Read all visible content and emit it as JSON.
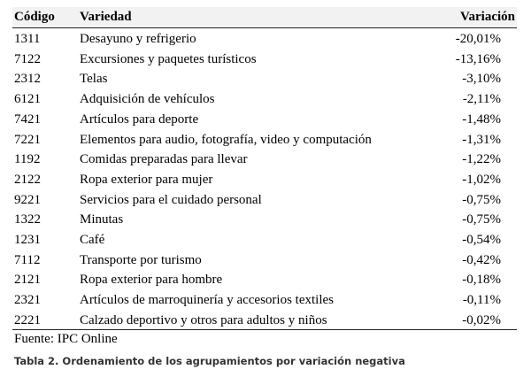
{
  "table": {
    "header": [
      "Código",
      "Variedad",
      "Variación"
    ],
    "rows": [
      [
        "1311",
        "Desayuno y refrigerio",
        "-20,01%"
      ],
      [
        "7122",
        "Excursiones y paquetes turísticos",
        "-13,16%"
      ],
      [
        "2312",
        "Telas",
        "-3,10%"
      ],
      [
        "6121",
        "Adquisición de vehículos",
        "-2,11%"
      ],
      [
        "7421",
        "Artículos para deporte",
        "-1,48%"
      ],
      [
        "7221",
        "Elementos para audio, fotografía, video y computación",
        "-1,31%"
      ],
      [
        "1192",
        "Comidas preparadas para llevar",
        "-1,22%"
      ],
      [
        "2122",
        "Ropa exterior para mujer",
        "-1,02%"
      ],
      [
        "9221",
        "Servicios para el cuidado personal",
        "-0,75%"
      ],
      [
        "1322",
        "Minutas",
        "-0,75%"
      ],
      [
        "1231",
        "Café",
        "-0,54%"
      ],
      [
        "7112",
        "Transporte por turismo",
        "-0,42%"
      ],
      [
        "2121",
        "Ropa exterior para hombre",
        "-0,18%"
      ],
      [
        "2321",
        "Artículos de marroquinería y accesorios textiles",
        "-0,11%"
      ],
      [
        "2221",
        "Calzado deportivo y otros para adultos y niños",
        "-0,02%"
      ]
    ],
    "source": "Fuente: IPC Online",
    "caption": "Tabla 2. Ordenamiento de los agrupamientos por variación negativa"
  }
}
